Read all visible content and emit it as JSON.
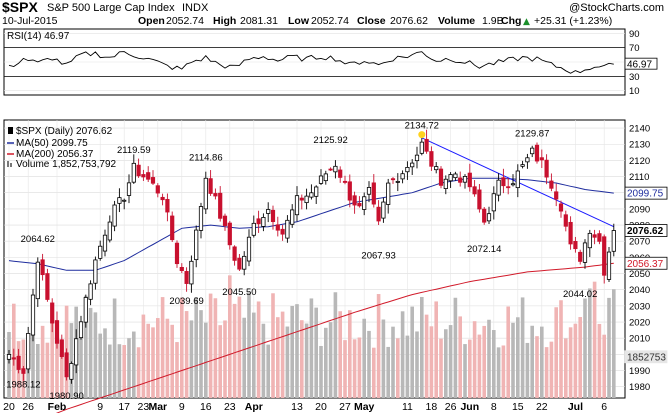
{
  "header": {
    "symbol": "$SPX",
    "name": "S&P 500 Large Cap Index",
    "exchange": "INDX",
    "watermark": "@StockCharts.com",
    "date": "10-Jul-2015",
    "open_label": "Open",
    "open": "2052.74",
    "high_label": "High",
    "high": "2081.31",
    "low_label": "Low",
    "low": "2052.74",
    "close_label": "Close",
    "close": "2076.62",
    "volume_label": "Volume",
    "volume": "1.9B",
    "chg_label": "Chg",
    "chg": "+25.31 (+1.23%)",
    "chg_arrow": "▲"
  },
  "rsi": {
    "label": "RSI(14) 46.97",
    "current_badge": "46.97",
    "ticks": [
      "90",
      "70",
      "50",
      "30",
      "10"
    ],
    "levels": [
      70,
      30
    ]
  },
  "legend": {
    "daily": "$SPX (Daily) 2076.62",
    "ma50": "MA(50) 2099.75",
    "ma200": "MA(200) 2056.37",
    "volume": "Volume 1,852,753,792"
  },
  "price_badges": {
    "ma50": "2099.75",
    "close": "2076.62",
    "ma200": "2056.37",
    "volume": "1852753"
  },
  "colors": {
    "up": "#000000",
    "down": "#c8102e",
    "ma50": "#1f2d9e",
    "ma200": "#d11a2a",
    "trendline": "#1a1aff",
    "volume_up": "#b8b8b8",
    "volume_down": "#f0b4b4",
    "highlight": "#ffd21f"
  },
  "chart_data": {
    "type": "candlestick",
    "title": "$SPX S&P 500 Large Cap Index INDX",
    "x_tick_labels": [
      "20",
      "26",
      "Feb",
      "9",
      "17",
      "23",
      "Mar",
      "9",
      "16",
      "23",
      "Apr",
      "13",
      "20",
      "27",
      "May",
      "11",
      "18",
      "26",
      "Jun",
      "8",
      "15",
      "22",
      "Jul",
      "6"
    ],
    "x_tick_index": [
      0,
      4,
      10,
      19,
      24,
      28,
      31,
      36,
      41,
      46,
      51,
      60,
      65,
      70,
      74,
      83,
      88,
      92,
      96,
      101,
      106,
      111,
      118,
      124
    ],
    "price_axis": {
      "ylim": [
        1973,
        2145
      ],
      "ticks": [
        1980,
        1990,
        2000,
        2010,
        2020,
        2030,
        2040,
        2050,
        2060,
        2070,
        2080,
        2090,
        2100,
        2110,
        2120,
        2130,
        2140
      ]
    },
    "annotations": [
      {
        "text": "1988.12",
        "index": 3,
        "value": 1988.12,
        "pos": "below"
      },
      {
        "text": "1980.90",
        "index": 12,
        "value": 1980.9,
        "pos": "below"
      },
      {
        "text": "2064.62",
        "index": 6,
        "value": 2064.62,
        "pos": "above"
      },
      {
        "text": "2119.59",
        "index": 26,
        "value": 2119.59,
        "pos": "above"
      },
      {
        "text": "2039.69",
        "index": 37,
        "value": 2039.69,
        "pos": "below"
      },
      {
        "text": "2114.86",
        "index": 41,
        "value": 2114.86,
        "pos": "above"
      },
      {
        "text": "2045.50",
        "index": 48,
        "value": 2045.5,
        "pos": "below"
      },
      {
        "text": "2125.92",
        "index": 67,
        "value": 2125.92,
        "pos": "above"
      },
      {
        "text": "2067.93",
        "index": 77,
        "value": 2067.93,
        "pos": "below"
      },
      {
        "text": "2134.72",
        "index": 86,
        "value": 2134.72,
        "pos": "above"
      },
      {
        "text": "2072.14",
        "index": 99,
        "value": 2072.14,
        "pos": "below"
      },
      {
        "text": "2129.87",
        "index": 109,
        "value": 2129.87,
        "pos": "above"
      },
      {
        "text": "2044.02",
        "index": 119,
        "value": 2044.02,
        "pos": "below"
      }
    ],
    "trendline": {
      "from": [
        86,
        2134
      ],
      "to": [
        126,
        2079
      ]
    },
    "highlight_point": {
      "index": 86,
      "value": 2134.72
    },
    "anchors": [
      [
        0,
        2000
      ],
      [
        3,
        1990
      ],
      [
        6,
        2060
      ],
      [
        9,
        2020
      ],
      [
        12,
        1985
      ],
      [
        15,
        2022
      ],
      [
        18,
        2058
      ],
      [
        21,
        2085
      ],
      [
        24,
        2098
      ],
      [
        26,
        2115
      ],
      [
        29,
        2108
      ],
      [
        32,
        2098
      ],
      [
        35,
        2058
      ],
      [
        37,
        2045
      ],
      [
        39,
        2075
      ],
      [
        41,
        2110
      ],
      [
        43,
        2095
      ],
      [
        46,
        2068
      ],
      [
        48,
        2052
      ],
      [
        51,
        2080
      ],
      [
        54,
        2090
      ],
      [
        57,
        2075
      ],
      [
        60,
        2095
      ],
      [
        63,
        2100
      ],
      [
        66,
        2112
      ],
      [
        68,
        2118
      ],
      [
        71,
        2098
      ],
      [
        73,
        2090
      ],
      [
        75,
        2100
      ],
      [
        77,
        2080
      ],
      [
        79,
        2105
      ],
      [
        82,
        2113
      ],
      [
        85,
        2124
      ],
      [
        86,
        2130
      ],
      [
        88,
        2118
      ],
      [
        90,
        2108
      ],
      [
        93,
        2112
      ],
      [
        96,
        2104
      ],
      [
        99,
        2082
      ],
      [
        102,
        2105
      ],
      [
        105,
        2108
      ],
      [
        107,
        2116
      ],
      [
        109,
        2125
      ],
      [
        111,
        2118
      ],
      [
        113,
        2106
      ],
      [
        115,
        2092
      ],
      [
        117,
        2066
      ],
      [
        119,
        2060
      ],
      [
        121,
        2078
      ],
      [
        123,
        2070
      ],
      [
        124,
        2052
      ],
      [
        126,
        2076.62
      ]
    ],
    "ma50": [
      [
        0,
        2058
      ],
      [
        6,
        2056
      ],
      [
        12,
        2052
      ],
      [
        18,
        2052
      ],
      [
        24,
        2058
      ],
      [
        30,
        2068
      ],
      [
        36,
        2078
      ],
      [
        42,
        2080
      ],
      [
        48,
        2078
      ],
      [
        54,
        2079
      ],
      [
        60,
        2082
      ],
      [
        66,
        2088
      ],
      [
        72,
        2094
      ],
      [
        78,
        2097
      ],
      [
        84,
        2100
      ],
      [
        90,
        2106
      ],
      [
        96,
        2109
      ],
      [
        102,
        2109
      ],
      [
        108,
        2108
      ],
      [
        114,
        2106
      ],
      [
        120,
        2102
      ],
      [
        126,
        2099.75
      ]
    ],
    "ma200": [
      [
        0,
        1952
      ],
      [
        12,
        1966
      ],
      [
        24,
        1978
      ],
      [
        36,
        1990
      ],
      [
        48,
        2002
      ],
      [
        60,
        2014
      ],
      [
        72,
        2026
      ],
      [
        84,
        2037
      ],
      [
        96,
        2045
      ],
      [
        108,
        2051
      ],
      [
        120,
        2054
      ],
      [
        126,
        2056.37
      ]
    ],
    "rsi_anchors": [
      [
        0,
        42
      ],
      [
        3,
        55
      ],
      [
        6,
        48
      ],
      [
        9,
        56
      ],
      [
        12,
        45
      ],
      [
        15,
        60
      ],
      [
        18,
        62
      ],
      [
        21,
        56
      ],
      [
        24,
        64
      ],
      [
        27,
        58
      ],
      [
        30,
        52
      ],
      [
        33,
        44
      ],
      [
        36,
        40
      ],
      [
        38,
        50
      ],
      [
        41,
        56
      ],
      [
        44,
        46
      ],
      [
        47,
        42
      ],
      [
        50,
        54
      ],
      [
        53,
        58
      ],
      [
        56,
        52
      ],
      [
        59,
        57
      ],
      [
        62,
        54
      ],
      [
        65,
        58
      ],
      [
        68,
        55
      ],
      [
        71,
        46
      ],
      [
        74,
        52
      ],
      [
        77,
        46
      ],
      [
        80,
        55
      ],
      [
        83,
        58
      ],
      [
        86,
        64
      ],
      [
        89,
        52
      ],
      [
        92,
        55
      ],
      [
        95,
        50
      ],
      [
        98,
        44
      ],
      [
        101,
        48
      ],
      [
        104,
        52
      ],
      [
        107,
        56
      ],
      [
        110,
        54
      ],
      [
        113,
        46
      ],
      [
        116,
        40
      ],
      [
        118,
        35
      ],
      [
        120,
        40
      ],
      [
        122,
        44
      ],
      [
        124,
        42
      ],
      [
        126,
        46.97
      ]
    ],
    "volume_axis": {
      "ylim": [
        0,
        3400000000
      ]
    }
  }
}
